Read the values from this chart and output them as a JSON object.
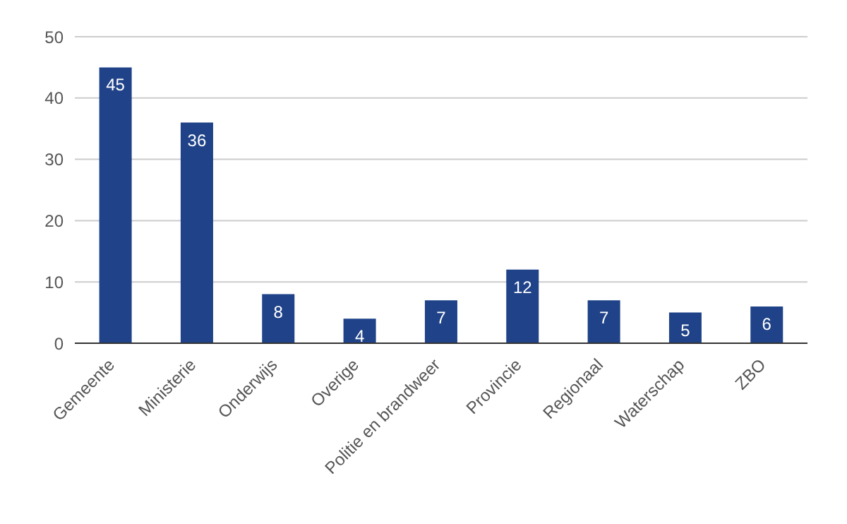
{
  "chart_data": {
    "type": "bar",
    "categories": [
      "Gemeente",
      "Ministerie",
      "Onderwijs",
      "Overige",
      "Politie en brandweer",
      "Provincie",
      "Regionaal",
      "Waterschap",
      "ZBO"
    ],
    "values": [
      45,
      36,
      8,
      4,
      7,
      12,
      7,
      5,
      6
    ],
    "color": "#1f4288",
    "ylim": [
      0,
      50
    ],
    "yticks": [
      0,
      10,
      20,
      30,
      40,
      50
    ],
    "grid": "y",
    "data_labels": true
  }
}
